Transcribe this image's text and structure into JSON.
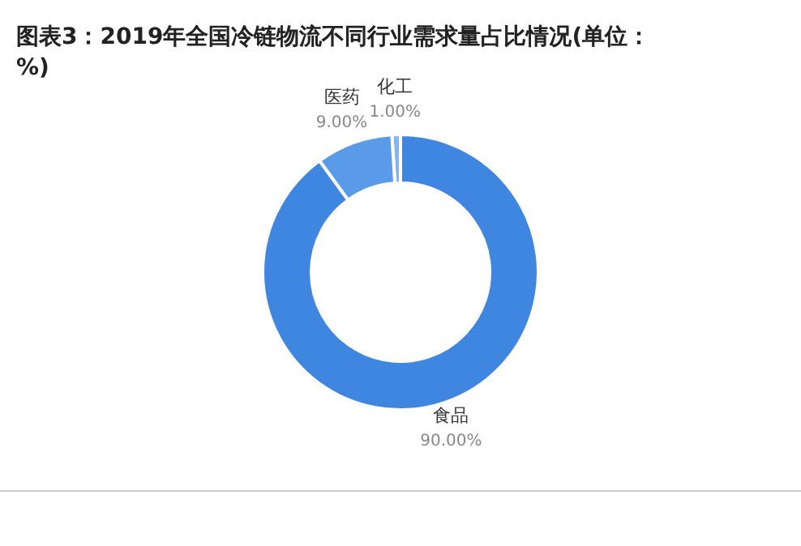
{
  "chart_data": {
    "type": "donut",
    "title": "图表3：2019年全国冷链物流不同行业需求量占比情况(单位：%)",
    "categories": [
      "食品",
      "医药",
      "化工"
    ],
    "values": [
      90,
      9,
      1
    ],
    "colors": [
      "#3f86e0",
      "#5a9be9",
      "#85b5f0"
    ],
    "value_labels": [
      "90.00%",
      "9.00%",
      "1.00%"
    ]
  }
}
